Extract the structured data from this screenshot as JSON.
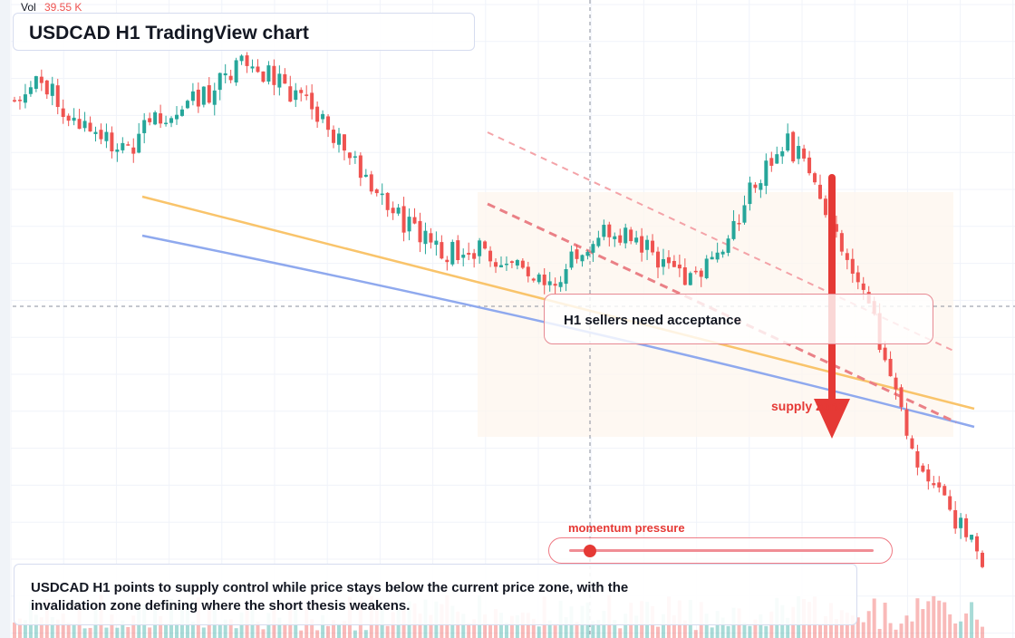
{
  "header": {
    "vol_label": "Vol",
    "vol_value": "39.55 K"
  },
  "title": "USDCAD H1 TradingView chart",
  "annotations": {
    "sellers_text": "H1 sellers need acceptance",
    "supply_label": "supply zone",
    "momentum_label": "momentum pressure",
    "momentum_level": 0.08,
    "note": "USDCAD H1 points to supply control while price stays below the current price zone, with the invalidation zone defining where the short thesis weakens."
  },
  "colors": {
    "bull": "#26a69a",
    "bear": "#ef5350",
    "orange_line": "#f9c46b",
    "blue_line": "#8fa9ee",
    "accent_red": "#e53935",
    "zone_fill": "#fdf5ee"
  },
  "chart_data": {
    "type": "candlestick",
    "symbol": "USDCAD",
    "timeframe": "H1",
    "price_trend": [
      50,
      54,
      45,
      40,
      38,
      45,
      49,
      52,
      58,
      56,
      50,
      42,
      35,
      25,
      18,
      12,
      14,
      12,
      9,
      6,
      15,
      19,
      15,
      9,
      7,
      14,
      30,
      40,
      32,
      16,
      0,
      -22,
      -42,
      -50,
      -60
    ],
    "overlays": [
      "orange trendline",
      "blue trendline",
      "dashed red downtrend lines",
      "supply zone",
      "bearish arrow"
    ]
  }
}
